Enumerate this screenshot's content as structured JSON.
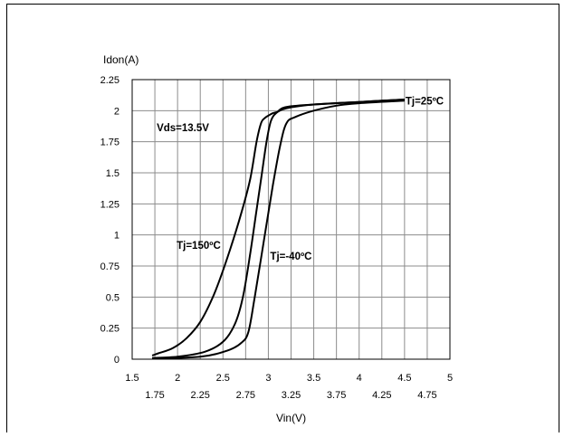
{
  "chart_data": {
    "type": "line",
    "title": "",
    "xlabel": "Vin(V)",
    "ylabel": "Idon(A)",
    "xlim": [
      1.5,
      5
    ],
    "ylim": [
      0,
      2.25
    ],
    "grid": true,
    "x_ticks_upper": [
      "1.5",
      "2",
      "2.5",
      "3",
      "3.5",
      "4",
      "4.5",
      "5"
    ],
    "x_ticks_lower": [
      "1.75",
      "2.25",
      "2.75",
      "3.25",
      "3.75",
      "4.25",
      "4.75"
    ],
    "y_ticks": [
      "0",
      "0.25",
      "0.5",
      "0.75",
      "1",
      "1.25",
      "1.5",
      "1.75",
      "2",
      "2.25"
    ],
    "annotations": [
      "Vds=13.5V",
      "Tj=25ºC",
      "Tj=150ºC",
      "Tj=-40ºC"
    ],
    "series": [
      {
        "name": "Tj=150ºC",
        "x": [
          1.72,
          1.8,
          1.95,
          2.1,
          2.25,
          2.4,
          2.55,
          2.7,
          2.8,
          2.87,
          2.92,
          2.96,
          3.0,
          3.05,
          3.1,
          3.2,
          3.5,
          4.0,
          4.5
        ],
        "y": [
          0.03,
          0.05,
          0.09,
          0.17,
          0.3,
          0.52,
          0.82,
          1.17,
          1.45,
          1.75,
          1.9,
          1.94,
          1.96,
          1.98,
          1.99,
          2.02,
          2.05,
          2.07,
          2.09
        ]
      },
      {
        "name": "Tj=25ºC",
        "x": [
          1.72,
          2.0,
          2.3,
          2.5,
          2.63,
          2.72,
          2.8,
          2.87,
          2.93,
          2.98,
          3.03,
          3.1,
          3.2,
          3.5,
          4.0,
          4.5
        ],
        "y": [
          0.01,
          0.02,
          0.06,
          0.14,
          0.28,
          0.5,
          0.85,
          1.2,
          1.5,
          1.75,
          1.92,
          1.99,
          2.03,
          2.05,
          2.07,
          2.09
        ]
      },
      {
        "name": "Tj=-40ºC",
        "x": [
          1.72,
          2.25,
          2.55,
          2.7,
          2.78,
          2.85,
          2.95,
          3.05,
          3.13,
          3.2,
          3.3,
          3.5,
          3.75,
          4.0,
          4.5
        ],
        "y": [
          0.005,
          0.02,
          0.07,
          0.13,
          0.22,
          0.5,
          0.95,
          1.4,
          1.72,
          1.9,
          1.95,
          2.0,
          2.04,
          2.06,
          2.08
        ]
      }
    ]
  }
}
